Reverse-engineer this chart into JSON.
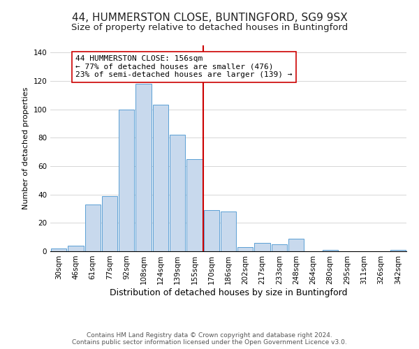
{
  "title": "44, HUMMERSTON CLOSE, BUNTINGFORD, SG9 9SX",
  "subtitle": "Size of property relative to detached houses in Buntingford",
  "xlabel": "Distribution of detached houses by size in Buntingford",
  "ylabel": "Number of detached properties",
  "footer_line1": "Contains HM Land Registry data © Crown copyright and database right 2024.",
  "footer_line2": "Contains public sector information licensed under the Open Government Licence v3.0.",
  "bin_labels": [
    "30sqm",
    "46sqm",
    "61sqm",
    "77sqm",
    "92sqm",
    "108sqm",
    "124sqm",
    "139sqm",
    "155sqm",
    "170sqm",
    "186sqm",
    "202sqm",
    "217sqm",
    "233sqm",
    "248sqm",
    "264sqm",
    "280sqm",
    "295sqm",
    "311sqm",
    "326sqm",
    "342sqm"
  ],
  "bar_heights": [
    2,
    4,
    33,
    39,
    100,
    118,
    103,
    82,
    65,
    29,
    28,
    3,
    6,
    5,
    9,
    0,
    1,
    0,
    0,
    0,
    1
  ],
  "bar_color": "#c8d9ed",
  "bar_edge_color": "#5a9fd4",
  "vline_x": 8.5,
  "vline_color": "#cc0000",
  "annotation_text": "44 HUMMERSTON CLOSE: 156sqm\n← 77% of detached houses are smaller (476)\n23% of semi-detached houses are larger (139) →",
  "annotation_box_edge": "#cc0000",
  "annotation_box_face": "#ffffff",
  "ylim": [
    0,
    145
  ],
  "yticks": [
    0,
    20,
    40,
    60,
    80,
    100,
    120,
    140
  ],
  "title_fontsize": 11,
  "subtitle_fontsize": 9.5,
  "xlabel_fontsize": 9,
  "ylabel_fontsize": 8,
  "tick_fontsize": 7.5,
  "annotation_fontsize": 8,
  "footer_fontsize": 6.5
}
